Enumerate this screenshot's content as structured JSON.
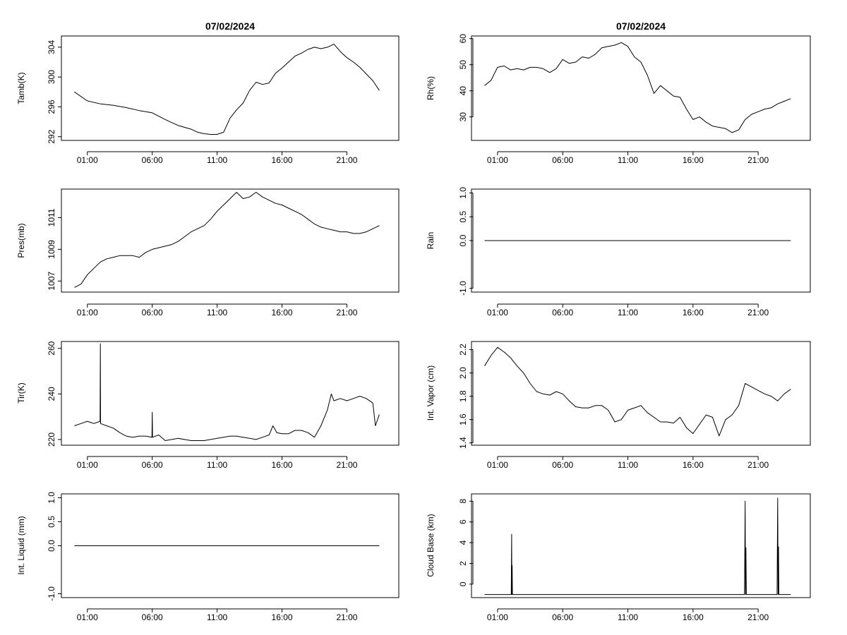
{
  "chart_data": [
    {
      "id": "tamb",
      "type": "line",
      "title": "07/02/2024",
      "ylabel": "Tamb(K)",
      "xlim": [
        -1,
        25
      ],
      "ylim": [
        291.5,
        305.5
      ],
      "x_ticks": [
        "01:00",
        "06:00",
        "11:00",
        "16:00",
        "21:00"
      ],
      "y_ticks": [
        "292",
        "296",
        "300",
        "304"
      ],
      "series": [
        {
          "x": [
            0,
            1,
            2,
            3,
            4,
            5,
            6,
            7,
            8,
            9,
            9.5,
            10,
            10.5,
            11,
            11.5,
            12,
            12.5,
            13,
            13.5,
            14,
            14.5,
            15,
            15.5,
            16,
            16.5,
            17,
            17.5,
            18,
            18.5,
            19,
            19.5,
            20,
            20.5,
            21,
            21.5,
            22,
            22.5,
            23,
            23.5
          ],
          "y": [
            298,
            296.8,
            296.4,
            296.2,
            295.9,
            295.5,
            295.2,
            294.3,
            293.5,
            293,
            292.6,
            292.4,
            292.3,
            292.3,
            292.6,
            294.5,
            295.6,
            296.5,
            298.2,
            299.3,
            299,
            299.2,
            300.5,
            301.2,
            302,
            302.8,
            303.2,
            303.7,
            304,
            303.8,
            304,
            304.4,
            303.4,
            302.6,
            302,
            301.3,
            300.4,
            299.5,
            298.2
          ]
        }
      ]
    },
    {
      "id": "rh",
      "type": "line",
      "title": "07/02/2024",
      "ylabel": "Rh(%)",
      "xlim": [
        -1,
        25
      ],
      "ylim": [
        21,
        61
      ],
      "x_ticks": [
        "01:00",
        "06:00",
        "11:00",
        "16:00",
        "21:00"
      ],
      "y_ticks": [
        "30",
        "40",
        "50",
        "60"
      ],
      "series": [
        {
          "x": [
            0,
            0.5,
            1,
            1.5,
            2,
            2.5,
            3,
            3.5,
            4,
            4.5,
            5,
            5.5,
            6,
            6.5,
            7,
            7.5,
            8,
            8.5,
            9,
            9.5,
            10,
            10.5,
            11,
            11.5,
            12,
            12.5,
            13,
            13.5,
            14,
            14.5,
            15,
            15.5,
            16,
            16.5,
            17,
            17.5,
            18,
            18.5,
            19,
            19.5,
            20,
            20.5,
            21,
            21.5,
            22,
            22.5,
            23,
            23.5
          ],
          "y": [
            42,
            44,
            49,
            49.5,
            48,
            48.5,
            48,
            49,
            49,
            48.5,
            47,
            48.5,
            52,
            50.5,
            51,
            53,
            52.5,
            54,
            56.5,
            57,
            57.5,
            58.5,
            57,
            53,
            51,
            46,
            39,
            42,
            40,
            38,
            37.5,
            33,
            29,
            30,
            28,
            26.5,
            26,
            25.5,
            24,
            25,
            29,
            31,
            32,
            33,
            33.5,
            35,
            36,
            37
          ]
        }
      ]
    },
    {
      "id": "pres",
      "type": "line",
      "ylabel": "Pres(mb)",
      "xlim": [
        -1,
        25
      ],
      "ylim": [
        1006.3,
        1012.8
      ],
      "x_ticks": [
        "01:00",
        "06:00",
        "11:00",
        "16:00",
        "21:00"
      ],
      "y_ticks": [
        "1007",
        "1009",
        "1011"
      ],
      "series": [
        {
          "x": [
            0,
            0.5,
            1,
            1.5,
            2,
            2.5,
            3,
            3.5,
            4,
            4.5,
            5,
            5.5,
            6,
            6.5,
            7,
            7.5,
            8,
            8.5,
            9,
            9.5,
            10,
            10.5,
            11,
            11.5,
            12,
            12.5,
            13,
            13.5,
            14,
            14.5,
            15,
            15.5,
            16,
            16.5,
            17,
            17.5,
            18,
            18.5,
            19,
            19.5,
            20,
            20.5,
            21,
            21.5,
            22,
            22.5,
            23,
            23.5
          ],
          "y": [
            1006.6,
            1006.8,
            1007.4,
            1007.8,
            1008.2,
            1008.4,
            1008.5,
            1008.6,
            1008.6,
            1008.6,
            1008.5,
            1008.8,
            1009.0,
            1009.1,
            1009.2,
            1009.3,
            1009.5,
            1009.8,
            1010.1,
            1010.3,
            1010.5,
            1010.9,
            1011.4,
            1011.8,
            1012.2,
            1012.6,
            1012.2,
            1012.3,
            1012.6,
            1012.3,
            1012.1,
            1011.9,
            1011.8,
            1011.6,
            1011.4,
            1011.2,
            1010.9,
            1010.6,
            1010.4,
            1010.3,
            1010.2,
            1010.1,
            1010.1,
            1010.0,
            1010.0,
            1010.1,
            1010.3,
            1010.5
          ]
        }
      ]
    },
    {
      "id": "rain",
      "type": "line",
      "ylabel": "Rain",
      "xlim": [
        -1,
        25
      ],
      "ylim": [
        -1.08,
        1.08
      ],
      "x_ticks": [
        "01:00",
        "06:00",
        "11:00",
        "16:00",
        "21:00"
      ],
      "y_ticks": [
        "-1.0",
        "0.0",
        "0.5",
        "1.0"
      ],
      "series": [
        {
          "x": [
            0,
            23.5
          ],
          "y": [
            0,
            0
          ]
        }
      ]
    },
    {
      "id": "tir",
      "type": "line",
      "ylabel": "Tir(K)",
      "xlim": [
        -1,
        25
      ],
      "ylim": [
        217.5,
        263
      ],
      "x_ticks": [
        "01:00",
        "06:00",
        "11:00",
        "16:00",
        "21:00"
      ],
      "y_ticks": [
        "220",
        "240",
        "260"
      ],
      "series": [
        {
          "x": [
            0,
            0.5,
            1,
            1.5,
            1.98,
            2.0,
            2.02,
            2.5,
            3,
            3.5,
            4,
            4.5,
            5,
            5.5,
            5.98,
            6.0,
            6.02,
            6.5,
            7,
            8,
            9,
            10,
            11,
            11.5,
            12,
            12.5,
            13,
            13.5,
            14,
            14.5,
            15,
            15.3,
            15.6,
            16,
            16.5,
            17,
            17.5,
            18,
            18.5,
            19,
            19.5,
            19.8,
            20,
            20.5,
            21,
            21.5,
            22,
            22.5,
            23,
            23.2,
            23.5
          ],
          "y": [
            226,
            227,
            228,
            227,
            228,
            262,
            227,
            226,
            225,
            223,
            221.5,
            221,
            221.5,
            221.5,
            221,
            232,
            221,
            222,
            219.5,
            220.5,
            219.5,
            219.5,
            220.5,
            221,
            221.5,
            221.5,
            221,
            220.5,
            220,
            221,
            222,
            226,
            223,
            222.5,
            222.5,
            224,
            224,
            223,
            221,
            226,
            233,
            240,
            237,
            238,
            237,
            238,
            239,
            238,
            236,
            226,
            231
          ]
        }
      ]
    },
    {
      "id": "vapor",
      "type": "line",
      "ylabel": "Int. Vapor (cm)",
      "xlim": [
        -1,
        25
      ],
      "ylim": [
        1.38,
        2.27
      ],
      "x_ticks": [
        "01:00",
        "06:00",
        "11:00",
        "16:00",
        "21:00"
      ],
      "y_ticks": [
        "1.4",
        "1.6",
        "1.8",
        "2.0",
        "2.2"
      ],
      "series": [
        {
          "x": [
            0,
            0.5,
            1,
            1.5,
            2,
            2.5,
            3,
            3.5,
            4,
            4.5,
            5,
            5.5,
            6,
            6.5,
            7,
            7.5,
            8,
            8.5,
            9,
            9.5,
            10,
            10.5,
            11,
            11.5,
            12,
            12.5,
            13,
            13.5,
            14,
            14.5,
            15,
            15.5,
            16,
            16.5,
            17,
            17.5,
            18,
            18.5,
            19,
            19.5,
            20,
            20.5,
            21,
            21.5,
            22,
            22.5,
            23,
            23.5
          ],
          "y": [
            2.06,
            2.15,
            2.22,
            2.18,
            2.13,
            2.06,
            2.0,
            1.91,
            1.84,
            1.82,
            1.81,
            1.84,
            1.82,
            1.76,
            1.71,
            1.7,
            1.7,
            1.72,
            1.72,
            1.68,
            1.58,
            1.6,
            1.68,
            1.7,
            1.72,
            1.66,
            1.62,
            1.58,
            1.58,
            1.57,
            1.62,
            1.53,
            1.48,
            1.56,
            1.64,
            1.62,
            1.46,
            1.6,
            1.64,
            1.72,
            1.91,
            1.88,
            1.85,
            1.82,
            1.8,
            1.76,
            1.82,
            1.86
          ]
        }
      ]
    },
    {
      "id": "liquid",
      "type": "line",
      "ylabel": "Int. Liquid (mm)",
      "xlim": [
        -1,
        25
      ],
      "ylim": [
        -1.08,
        1.08
      ],
      "x_ticks": [
        "01:00",
        "06:00",
        "11:00",
        "16:00",
        "21:00"
      ],
      "y_ticks": [
        "-1.0",
        "0.0",
        "0.5",
        "1.0"
      ],
      "series": [
        {
          "x": [
            0,
            23.5
          ],
          "y": [
            0,
            0
          ]
        }
      ]
    },
    {
      "id": "cloud",
      "type": "line",
      "ylabel": "Cloud Base (km)",
      "xlim": [
        -1,
        25
      ],
      "ylim": [
        -1.3,
        8.7
      ],
      "x_ticks": [
        "01:00",
        "06:00",
        "11:00",
        "16:00",
        "21:00"
      ],
      "y_ticks": [
        "0",
        "2",
        "4",
        "6",
        "8"
      ],
      "series": [
        {
          "x": [
            0,
            2.05,
            2.08,
            2.1,
            2.12,
            2.14,
            19.95,
            20.0,
            20.03,
            20.06,
            20.09,
            22.45,
            22.5,
            22.53,
            22.56,
            22.59,
            23.5
          ],
          "y": [
            -1,
            -1,
            4.8,
            -1,
            1.8,
            -1,
            -1,
            8.0,
            -1,
            3.5,
            -1,
            -1,
            8.3,
            -1,
            3.6,
            -1,
            -1
          ]
        }
      ]
    }
  ]
}
